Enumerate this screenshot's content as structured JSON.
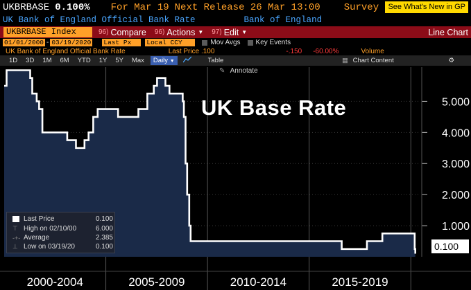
{
  "header": {
    "ticker": "UKBRBASE",
    "price": "0.100%",
    "for_date": "For Mar 19",
    "next_release": "Next Release 26 Mar 13:00",
    "survey": "Survey",
    "gp_button": "See What's New in GP"
  },
  "subheader": {
    "name": "UK Bank of England Official Bank Rate",
    "source": "Bank of England"
  },
  "toolbar": {
    "index_label": "UKBRBASE Index",
    "compare": {
      "num": "96)",
      "label": "Compare"
    },
    "actions": {
      "num": "96)",
      "label": "Actions"
    },
    "edit": {
      "num": "97)",
      "label": "Edit"
    },
    "line_chart": "Line Chart"
  },
  "controls": {
    "start_date": "01/01/2000",
    "end_date": "03/19/2020",
    "field": "Last Px",
    "currency": "Local CCY",
    "mov_avgs": "Mov Avgs",
    "key_events": "Key Events"
  },
  "info": {
    "series_name": "UK Bank of England Official Bank Rate",
    "last_price": "Last Price .100",
    "change": "-.150",
    "change_pct": "-60.00%",
    "volume": "Volume"
  },
  "ranges": [
    "1D",
    "3D",
    "1M",
    "6M",
    "YTD",
    "1Y",
    "5Y",
    "Max"
  ],
  "periodicity": "Daily",
  "chart_tools": {
    "table": "Table",
    "content": "Chart Content",
    "annotate": "Annotate"
  },
  "legend": {
    "last_price": {
      "label": "Last Price",
      "value": "0.100"
    },
    "high": {
      "label": "High on 02/10/00",
      "value": "6.000"
    },
    "average": {
      "label": "Average",
      "value": "2.385"
    },
    "low": {
      "label": "Low on 03/19/20",
      "value": "0.100"
    }
  },
  "overlay_title": "UK Base Rate",
  "last_badge": "0.100",
  "colors": {
    "accent": "#ffa028",
    "blue_text": "#4aa6ff",
    "toolbar_bg": "#8c0c18",
    "area_fill": "#1a2a48",
    "line": "#ffffff",
    "gp_button": "#ffd900"
  },
  "chart_data": {
    "type": "area",
    "title": "UK Base Rate",
    "x_period_labels": [
      "2000-2004",
      "2005-2009",
      "2010-2014",
      "2015-2019"
    ],
    "y_ticks": [
      "1.000",
      "2.000",
      "3.000",
      "4.000",
      "5.000"
    ],
    "ylim": [
      0,
      6.1
    ],
    "xlim": [
      2000.0,
      2020.4
    ],
    "grid": true,
    "y_axis": "right",
    "x": [
      2000.0,
      2000.12,
      2001.12,
      2001.28,
      2001.38,
      2001.6,
      2001.72,
      2001.88,
      2003.1,
      2003.53,
      2003.95,
      2004.15,
      2004.38,
      2004.6,
      2005.6,
      2006.6,
      2007.04,
      2007.36,
      2007.52,
      2007.93,
      2008.13,
      2008.78,
      2008.84,
      2008.92,
      2009.0,
      2009.1,
      2009.17,
      2016.6,
      2017.84,
      2018.6,
      2020.19,
      2020.22
    ],
    "values": [
      5.5,
      6.0,
      6.0,
      5.75,
      5.25,
      5.0,
      4.75,
      4.0,
      3.75,
      3.5,
      3.75,
      4.0,
      4.5,
      4.75,
      4.5,
      4.75,
      5.25,
      5.5,
      5.75,
      5.5,
      5.25,
      5.0,
      4.5,
      3.0,
      2.0,
      1.0,
      0.5,
      0.25,
      0.5,
      0.75,
      0.25,
      0.1
    ],
    "legend_placement": "bottom-left"
  }
}
